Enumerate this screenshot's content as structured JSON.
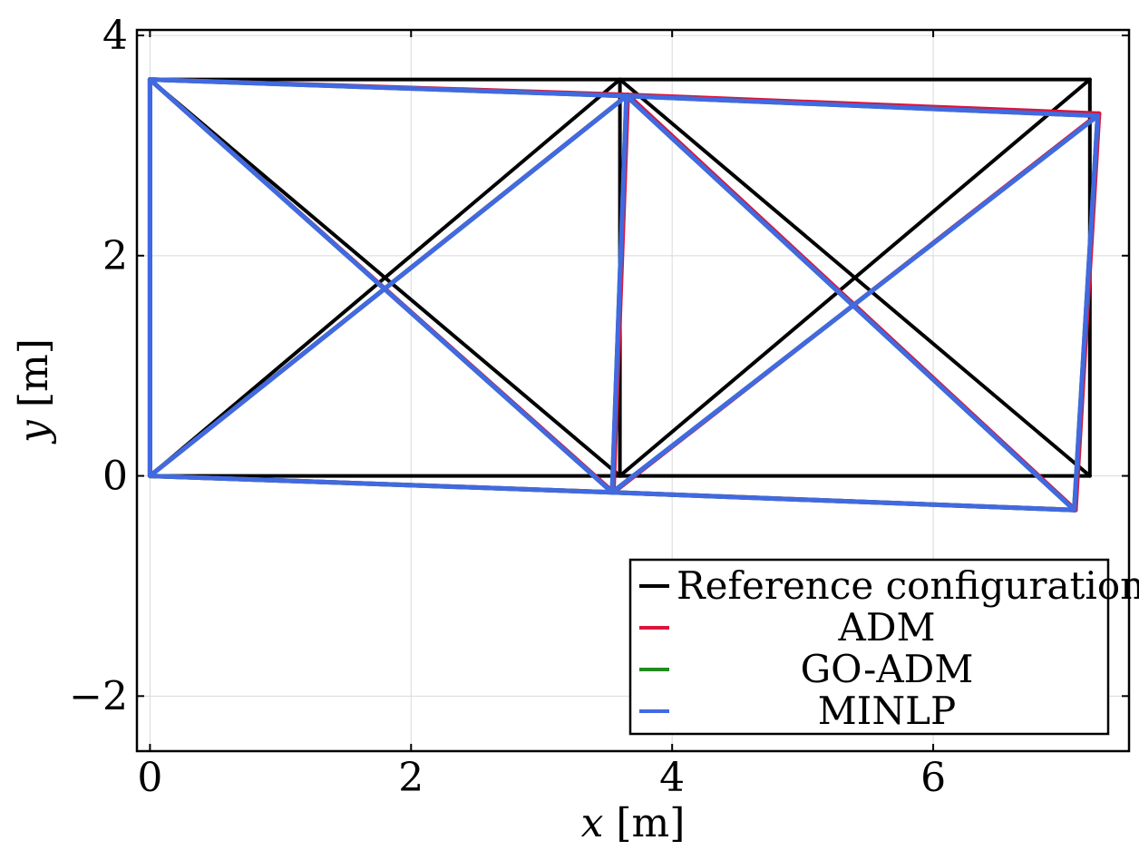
{
  "chart_data": {
    "type": "line",
    "xlabel_var": "x",
    "xlabel_unit": " [m]",
    "ylabel_var": "y",
    "ylabel_unit": " [m]",
    "xlim": [
      -0.1,
      7.5
    ],
    "ylim": [
      -2.5,
      4.05
    ],
    "xticks": [
      0,
      2,
      4,
      6
    ],
    "xtick_labels": [
      "0",
      "2",
      "4",
      "6"
    ],
    "yticks": [
      -2,
      0,
      2,
      4
    ],
    "ytick_labels": [
      "−2",
      "0",
      "2",
      "4"
    ],
    "grid": true,
    "legend_position": "bottom-right",
    "series": [
      {
        "name": "Reference configuration",
        "color": "#000000",
        "nodes": [
          [
            0,
            0
          ],
          [
            0,
            3.6
          ],
          [
            3.6,
            0
          ],
          [
            3.6,
            3.6
          ],
          [
            7.2,
            0
          ],
          [
            7.2,
            3.6
          ]
        ]
      },
      {
        "name": "ADM",
        "color": "#dc143c",
        "nodes": [
          [
            0,
            0
          ],
          [
            0,
            3.6
          ],
          [
            3.55,
            -0.15
          ],
          [
            3.66,
            3.46
          ],
          [
            7.09,
            -0.31
          ],
          [
            7.27,
            3.29
          ]
        ]
      },
      {
        "name": "GO-ADM",
        "color": "#228b22",
        "nodes": [
          [
            0,
            0
          ],
          [
            0,
            3.6
          ],
          [
            3.54,
            -0.15
          ],
          [
            3.65,
            3.45
          ],
          [
            7.08,
            -0.31
          ],
          [
            7.26,
            3.27
          ]
        ]
      },
      {
        "name": "MINLP",
        "color": "#4169e1",
        "nodes": [
          [
            0,
            0
          ],
          [
            0,
            3.6
          ],
          [
            3.54,
            -0.15
          ],
          [
            3.65,
            3.45
          ],
          [
            7.08,
            -0.31
          ],
          [
            7.26,
            3.27
          ]
        ]
      }
    ],
    "members": [
      [
        0,
        1
      ],
      [
        0,
        2
      ],
      [
        1,
        3
      ],
      [
        2,
        3
      ],
      [
        0,
        3
      ],
      [
        1,
        2
      ],
      [
        2,
        4
      ],
      [
        3,
        5
      ],
      [
        4,
        5
      ],
      [
        2,
        5
      ],
      [
        3,
        4
      ]
    ]
  }
}
